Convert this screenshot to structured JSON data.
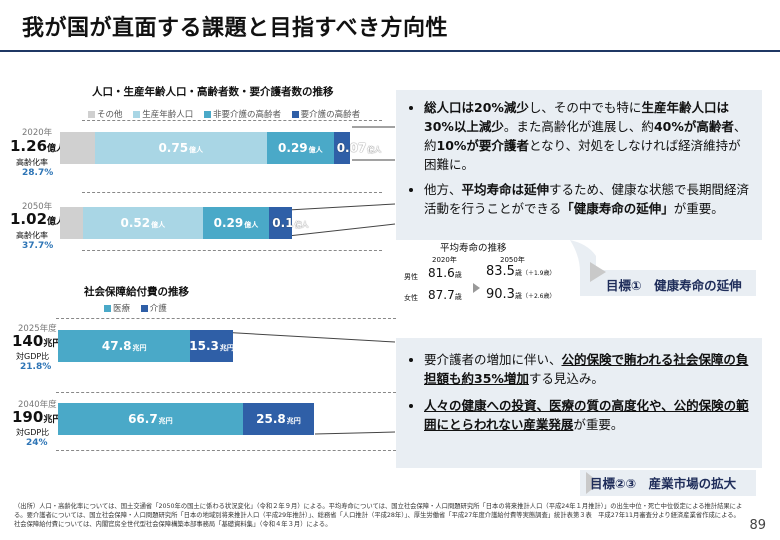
{
  "page": {
    "title": "我が国が直面する課題と目指すべき方向性",
    "page_number": "89"
  },
  "population_chart": {
    "title": "人口・生産年齢人口・高齢者数・要介護者数の推移",
    "legend": [
      {
        "label": "その他",
        "color": "#d0d0d0"
      },
      {
        "label": "生産年齢人口",
        "color": "#a9d6e5"
      },
      {
        "label": "非要介護の高齢者",
        "color": "#4aa9c8"
      },
      {
        "label": "要介護の高齢者",
        "color": "#2f5fa7"
      }
    ],
    "rows": [
      {
        "year": "2020年",
        "total": "1.26",
        "total_unit": "億人",
        "ratio_label": "高齢化率",
        "ratio": "28.7",
        "ratio_unit": "%",
        "segments": [
          {
            "name": "その他",
            "value": 0.15,
            "label": ""
          },
          {
            "name": "生産年齢人口",
            "value": 0.75,
            "label": "0.75",
            "unit": "億人"
          },
          {
            "name": "非要介護の高齢者",
            "value": 0.29,
            "label": "0.29",
            "unit": "億人"
          },
          {
            "name": "要介護の高齢者",
            "value": 0.07,
            "label": "0.07",
            "unit": "億人"
          }
        ]
      },
      {
        "year": "2050年",
        "total": "1.02",
        "total_unit": "億人",
        "ratio_label": "高齢化率",
        "ratio": "37.7",
        "ratio_unit": "%",
        "segments": [
          {
            "name": "その他",
            "value": 0.1,
            "label": ""
          },
          {
            "name": "生産年齢人口",
            "value": 0.52,
            "label": "0.52",
            "unit": "億人"
          },
          {
            "name": "非要介護の高齢者",
            "value": 0.29,
            "label": "0.29",
            "unit": "億人"
          },
          {
            "name": "要介護の高齢者",
            "value": 0.1,
            "label": "0.1",
            "unit": "億人"
          }
        ]
      }
    ]
  },
  "security_chart": {
    "title": "社会保障給付費の推移",
    "legend": [
      {
        "label": "医療",
        "color": "#4aa9c8"
      },
      {
        "label": "介護",
        "color": "#2f5fa7"
      }
    ],
    "rows": [
      {
        "year": "2025年度",
        "total": "140",
        "total_unit": "兆円",
        "ratio_label": "対GDP比",
        "ratio": "21.8",
        "ratio_unit": "%",
        "segments": [
          {
            "name": "医療",
            "value": 47.8,
            "label": "47.8",
            "unit": "兆円"
          },
          {
            "name": "介護",
            "value": 15.3,
            "label": "15.3",
            "unit": "兆円"
          }
        ]
      },
      {
        "year": "2040年度",
        "total": "190",
        "total_unit": "兆円",
        "ratio_label": "対GDP比",
        "ratio": "24",
        "ratio_unit": "%",
        "segments": [
          {
            "name": "医療",
            "value": 66.7,
            "label": "66.7",
            "unit": "兆円"
          },
          {
            "name": "介護",
            "value": 25.8,
            "label": "25.8",
            "unit": "兆円"
          }
        ]
      }
    ]
  },
  "panels": {
    "p1": {
      "b1": {
        "a": "総人口は20%減少",
        "b": "し、その中でも特に",
        "c": "生産年齢人口は30%以上減少",
        "d": "。また高齢化が進展し、約",
        "e": "40%が高齢者",
        "f": "、約",
        "g": "10%が要介護者",
        "h": "となり、対処をしなければ経済維持が困難に。"
      },
      "b2": {
        "a": "他方、",
        "b": "平均寿命は延伸",
        "c": "するため、健康な状態で長期間経済活動を行うことができる",
        "d": "「健康寿命の延伸」",
        "e": "が重要。"
      }
    },
    "life": {
      "title": "平均寿命の推移",
      "year1": "2020年",
      "year2": "2050年",
      "male_label": "男性",
      "female_label": "女性",
      "male_2020": "81.6",
      "female_2020": "87.7",
      "male_2050": "83",
      "male_2050_dec": ".5",
      "male_inc": "（＋1.9歳）",
      "female_2050": "90",
      "female_2050_dec": ".3",
      "female_inc": "（＋2.6歳）",
      "unit": "歳"
    },
    "goal1": "目標①　健康寿命の延伸",
    "p2": {
      "b1": {
        "a": "要介護者の増加に伴い、",
        "b": "公的保険で賄われる社会保障の負担額も約35%増加",
        "c": "する見込み。"
      },
      "b2": {
        "a": "人々の健康への投資、医療の質の高度化や、公的保険の範囲にとらわれない産業発展",
        "b": "が重要。"
      }
    },
    "goal2": "目標②③　産業市場の拡大"
  },
  "source": "（出所）人口・高齢化率については、国土交通省「2050年の国土に係わる状況変化」（令和２年９月）による。平均寿命については、国立社会保障・人口問題研究所「日本の将来推計人口（平成24年１月推計）」の出生中位・死亡中位仮定による推計結果による。要介護者については、国立社会保障・人口問題研究所「日本の地域別将来推計人口（平成29年推計）」、総務省「人口推計（平成28年）」、厚生労働省「平成27年度介護給付費等実態調査」統計表第３表　平成27年11月審査分より経済産業省作成による。社会保障給付費については、内閣官房全世代型社会保障構築本部事務局「基礎資料集」（令和４年３月）による。"
}
